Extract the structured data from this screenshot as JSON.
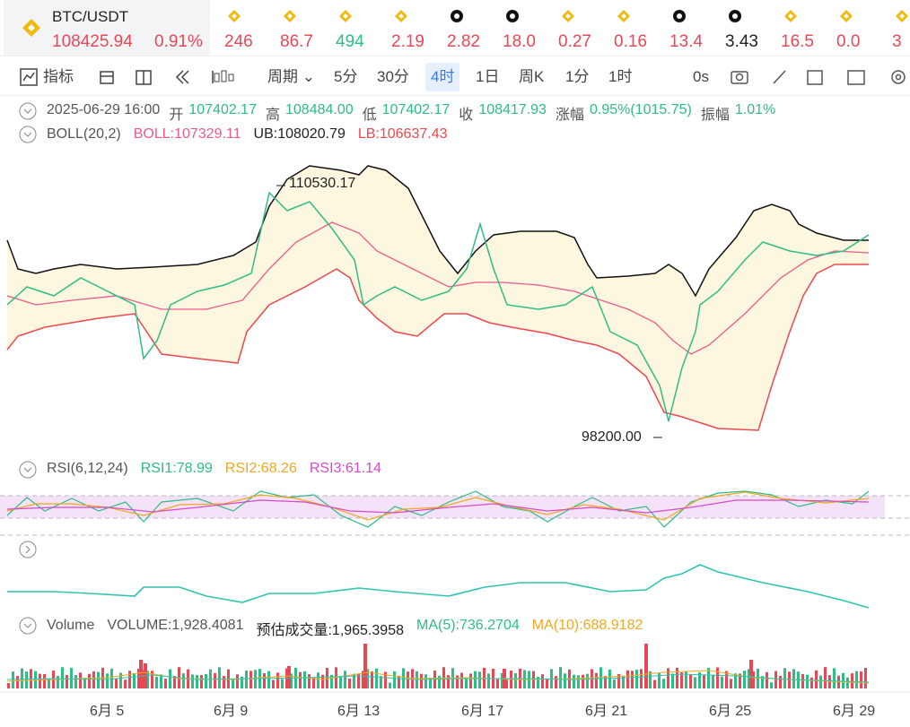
{
  "header": {
    "pair": "BTC/USDT",
    "price": "108425.94",
    "change": "0.91%",
    "tickers": [
      {
        "value": "246",
        "color": "#e84856",
        "icon": "bnb"
      },
      {
        "value": "86.7",
        "color": "#e84856",
        "icon": "bnb"
      },
      {
        "value": "494",
        "color": "#2dbd85",
        "icon": "bnb"
      },
      {
        "value": "2.19",
        "color": "#e84856",
        "icon": "bnb"
      },
      {
        "value": "2.82",
        "color": "#e84856",
        "icon": "dark"
      },
      {
        "value": "18.0",
        "color": "#e84856",
        "icon": "dark"
      },
      {
        "value": "0.27",
        "color": "#e84856",
        "icon": "bnb"
      },
      {
        "value": "0.16",
        "color": "#e84856",
        "icon": "bnb"
      },
      {
        "value": "13.4",
        "color": "#e84856",
        "icon": "dark"
      },
      {
        "value": "3.43",
        "color": "#222222",
        "icon": "dark"
      },
      {
        "value": "16.5",
        "color": "#e84856",
        "icon": "bnb"
      },
      {
        "value": "0.0",
        "color": "#e84856",
        "icon": "bnb"
      },
      {
        "value": "3",
        "color": "#e84856",
        "icon": "bnb"
      }
    ]
  },
  "toolbar": {
    "indicator": "指标",
    "period": "周期",
    "intervals": [
      "5分",
      "30分",
      "4时",
      "1日",
      "周K",
      "1分",
      "1时"
    ],
    "active": 2,
    "timer": "0s"
  },
  "info": {
    "time": "2025-06-29 16:00",
    "fields": [
      {
        "label": "开",
        "value": "107402.17"
      },
      {
        "label": "高",
        "value": "108484.00"
      },
      {
        "label": "低",
        "value": "107402.17"
      },
      {
        "label": "收",
        "value": "108417.93"
      },
      {
        "label": "涨幅",
        "value": "0.95%(1015.75)"
      },
      {
        "label": "振幅",
        "value": "1.01%"
      }
    ]
  },
  "boll": {
    "name": "BOLL(20,2)",
    "mid": "BOLL:107329.11",
    "ub": "UB:108020.79",
    "lb": "LB:106637.43"
  },
  "annotations": {
    "high": "110530.17",
    "low": "98200.00"
  },
  "rsi": {
    "name": "RSI(6,12,24)",
    "rsi1": "RSI1:78.99",
    "rsi2": "RSI2:68.26",
    "rsi3": "RSI3:61.14"
  },
  "volume": {
    "name": "Volume",
    "volume": "VOLUME:1,928.4081",
    "estimate": "预估成交量:1,965.3958",
    "ma5": "MA(5):736.2704",
    "ma10": "MA(10):688.9182"
  },
  "x_labels": [
    "6月 5",
    "6月 9",
    "6月 13",
    "6月 17",
    "6月 21",
    "6月 25",
    "6月 29"
  ]
}
